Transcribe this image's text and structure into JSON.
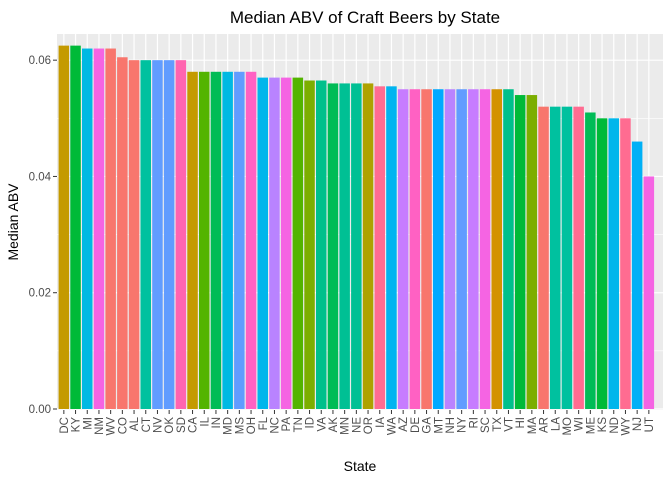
{
  "chart_data": {
    "type": "bar",
    "title": "Median ABV of Craft Beers by State",
    "xlabel": "State",
    "ylabel": "Median ABV",
    "ylim": [
      0,
      0.0645
    ],
    "yticks": [
      "0.00",
      "0.02",
      "0.04",
      "0.06"
    ],
    "ytick_values": [
      0,
      0.02,
      0.04,
      0.06
    ],
    "grid": true,
    "legend": "none",
    "panel_color": "#ebebeb",
    "categories": [
      "DC",
      "KY",
      "MI",
      "NM",
      "WV",
      "CO",
      "AL",
      "CT",
      "NV",
      "OK",
      "SD",
      "CA",
      "IL",
      "IN",
      "MD",
      "MS",
      "OH",
      "FL",
      "NC",
      "PA",
      "TN",
      "ID",
      "VA",
      "AK",
      "MN",
      "NE",
      "OR",
      "IA",
      "WA",
      "AZ",
      "DE",
      "GA",
      "MT",
      "NH",
      "NY",
      "RI",
      "SC",
      "TX",
      "VT",
      "HI",
      "MA",
      "AR",
      "LA",
      "MO",
      "WI",
      "ME",
      "KS",
      "ND",
      "WY",
      "NJ",
      "UT"
    ],
    "values": [
      0.0625,
      0.0625,
      0.062,
      0.062,
      0.062,
      0.0605,
      0.06,
      0.06,
      0.06,
      0.06,
      0.06,
      0.058,
      0.058,
      0.058,
      0.058,
      0.058,
      0.058,
      0.057,
      0.057,
      0.057,
      0.057,
      0.0565,
      0.0565,
      0.056,
      0.056,
      0.056,
      0.056,
      0.0555,
      0.0555,
      0.055,
      0.055,
      0.055,
      0.055,
      0.055,
      0.055,
      0.055,
      0.055,
      0.055,
      0.055,
      0.054,
      0.054,
      0.052,
      0.052,
      0.052,
      0.052,
      0.051,
      0.05,
      0.05,
      0.05,
      0.046,
      0.04
    ],
    "colors": [
      "#c49a00",
      "#00ba38",
      "#00b9e3",
      "#f564e3",
      "#f8766d",
      "#f8766d",
      "#f8766d",
      "#00c19f",
      "#619cff",
      "#619cff",
      "#ff64b0",
      "#c49a00",
      "#53b400",
      "#00bc56",
      "#00b9e3",
      "#619cff",
      "#ff61c3",
      "#00b6eb",
      "#b983ff",
      "#f564e3",
      "#53b400",
      "#7cae00",
      "#00c08b",
      "#00bc56",
      "#00c094",
      "#00c094",
      "#aea200",
      "#ff6c91",
      "#00b4f0",
      "#c77cff",
      "#ff61c3",
      "#f8766d",
      "#00a9ff",
      "#b983ff",
      "#619cff",
      "#c77cff",
      "#f564e3",
      "#d39200",
      "#00c08b",
      "#00ba38",
      "#7cae00",
      "#f8766d",
      "#00c19f",
      "#00c19f",
      "#ff6c91",
      "#00bc56",
      "#00ba38",
      "#00b6eb",
      "#ff6c91",
      "#00b0f6",
      "#f564e3"
    ]
  }
}
